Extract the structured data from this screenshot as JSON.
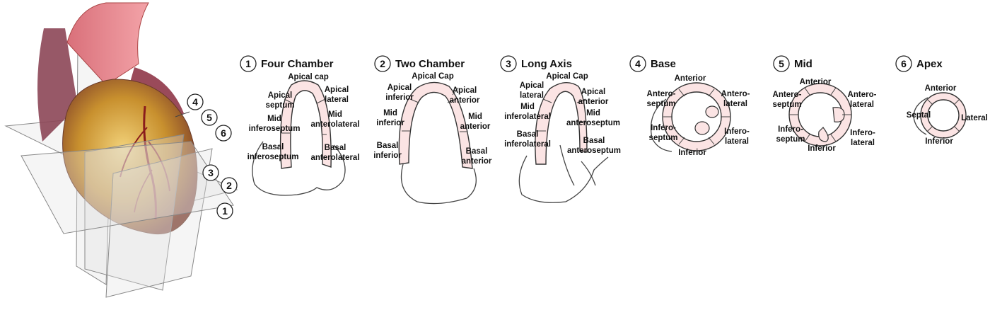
{
  "views": [
    {
      "num": "1",
      "title": "Four Chamber",
      "labels": [
        "Apical cap",
        "Apical",
        "septum",
        "Apical",
        "lateral",
        "Mid",
        "inferoseptum",
        "Mid",
        "anterolateral",
        "Basal",
        "inferoseptum",
        "Basal",
        "anterolateral"
      ]
    },
    {
      "num": "2",
      "title": "Two Chamber",
      "labels": [
        "Apical Cap",
        "Apical",
        "inferior",
        "Apical",
        "anterior",
        "Mid",
        "inferior",
        "Mid",
        "anterior",
        "Basal",
        "inferior",
        "Basal",
        "anterior"
      ]
    },
    {
      "num": "3",
      "title": "Long Axis",
      "labels": [
        "Apical Cap",
        "Apical",
        "lateral",
        "Apical",
        "anterior",
        "Mid",
        "inferolateral",
        "Mid",
        "anteroseptum",
        "Basal",
        "inferolateral",
        "Basal",
        "anteroseptum"
      ]
    },
    {
      "num": "4",
      "title": "Base",
      "labels": [
        "Anterior",
        "Antero-",
        "septum",
        "Antero-",
        "lateral",
        "Infero-",
        "septum",
        "Infero-",
        "lateral",
        "Inferior"
      ]
    },
    {
      "num": "5",
      "title": "Mid",
      "labels": [
        "Anterior",
        "Antero-",
        "septum",
        "Antero-",
        "lateral",
        "Infero-",
        "septum",
        "Infero-",
        "lateral",
        "Inferior"
      ]
    },
    {
      "num": "6",
      "title": "Apex",
      "labels": [
        "Anterior",
        "Septal",
        "Lateral",
        "Inferior"
      ]
    }
  ],
  "heart_plane_numbers": [
    "4",
    "5",
    "6",
    "3",
    "2",
    "1"
  ],
  "colors": {
    "myocardium": "#fbe4e4",
    "heart": "#c8902e",
    "vessels": "#8a1c1c"
  }
}
